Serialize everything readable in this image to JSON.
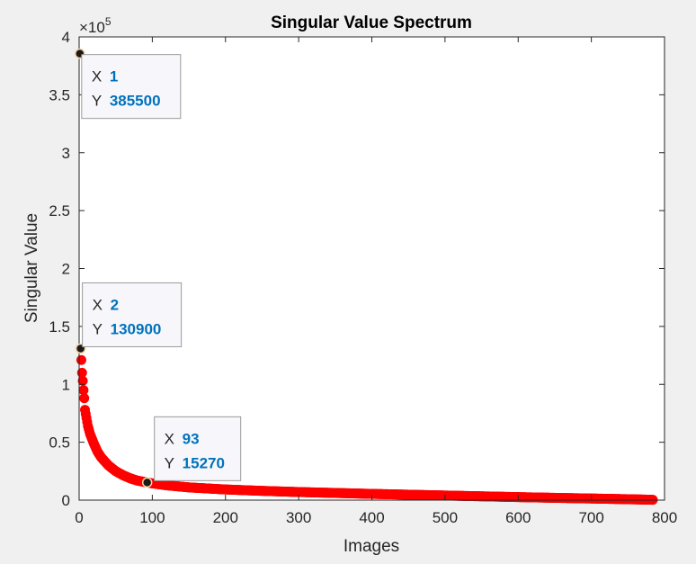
{
  "chart_data": {
    "type": "scatter",
    "title": "Singular Value Spectrum",
    "xlabel": "Images",
    "ylabel": "Singular Value",
    "xlim": [
      0,
      800
    ],
    "ylim": [
      0,
      400000
    ],
    "xticks": [
      "0",
      "100",
      "200",
      "300",
      "400",
      "500",
      "600",
      "700",
      "800"
    ],
    "yticks": [
      "0",
      "0.5",
      "1",
      "1.5",
      "2",
      "2.5",
      "3",
      "3.5",
      "4"
    ],
    "y_exponent_label": "×10",
    "y_exponent_power": "5",
    "marker_color": "#ff0000",
    "grid": false,
    "series": [
      {
        "x": [
          1,
          2,
          3,
          4,
          5,
          6,
          7,
          8,
          10,
          12,
          15,
          20,
          25,
          30,
          40,
          50,
          60,
          70,
          80,
          93,
          100,
          120,
          150,
          200,
          250,
          300,
          350,
          400,
          450,
          500,
          550,
          600,
          650,
          700,
          750,
          784
        ],
        "y": [
          385500,
          130900,
          121000,
          110000,
          103000,
          95000,
          88000,
          78000,
          71000,
          64000,
          57000,
          49000,
          42000,
          37000,
          30000,
          25000,
          21500,
          18800,
          16800,
          15270,
          14500,
          12800,
          11000,
          9200,
          8000,
          7000,
          6200,
          5400,
          4700,
          4000,
          3300,
          2600,
          2000,
          1400,
          800,
          300
        ]
      }
    ],
    "annotations": [
      {
        "x_label": "X",
        "x_value": "1",
        "y_label": "Y",
        "y_value": "385500",
        "x": 1,
        "y": 385500
      },
      {
        "x_label": "X",
        "x_value": "2",
        "y_label": "Y",
        "y_value": "130900",
        "x": 2,
        "y": 130900
      },
      {
        "x_label": "X",
        "x_value": "93",
        "y_label": "Y",
        "y_value": "15270",
        "x": 93,
        "y": 15270
      }
    ]
  }
}
